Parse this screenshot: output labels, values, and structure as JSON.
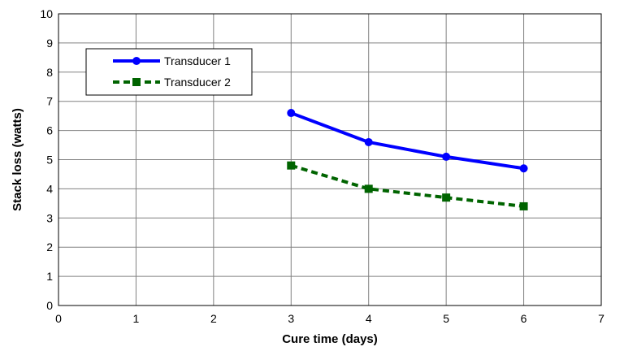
{
  "chart_data": {
    "type": "line",
    "title": "",
    "xlabel": "Cure time (days)",
    "ylabel": "Stack loss (watts)",
    "xlim": [
      0,
      7
    ],
    "ylim": [
      0,
      10
    ],
    "xticks": [
      "0",
      "1",
      "2",
      "3",
      "4",
      "5",
      "6",
      "7"
    ],
    "yticks": [
      "0",
      "1",
      "2",
      "3",
      "4",
      "5",
      "6",
      "7",
      "8",
      "9",
      "10"
    ],
    "grid": true,
    "legend_position": "top-left",
    "series": [
      {
        "name": "Transducer 1",
        "color": "#0000ff",
        "line_style": "solid",
        "marker": "circle",
        "x": [
          3,
          4,
          5,
          6
        ],
        "y": [
          6.6,
          5.6,
          5.1,
          4.7
        ]
      },
      {
        "name": "Transducer 2",
        "color": "#006400",
        "line_style": "dashed",
        "marker": "square",
        "x": [
          3,
          4,
          5,
          6
        ],
        "y": [
          4.8,
          4.0,
          3.7,
          3.4
        ]
      }
    ]
  }
}
